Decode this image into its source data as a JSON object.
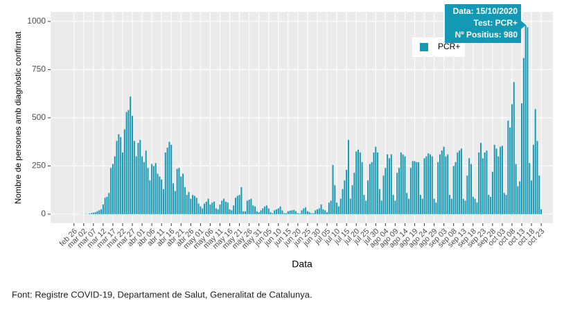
{
  "chart_data": {
    "type": "bar",
    "y_label": "Nombre de persones amb diagnòstic confirmat",
    "x_label": "Data",
    "source": "Font: Registre COVID-19, Departament de Salut, Generalitat de Catalunya.",
    "tooltip": [
      "Data: 15/10/2020",
      "Test: PCR+",
      "Nº Positius: 980"
    ],
    "grid": true,
    "legend": "top-right",
    "xlim": [
      "2020-02-14",
      "2020-10-29"
    ],
    "ylim": [
      -47,
      1050
    ],
    "yticks": [
      0,
      250,
      500,
      750,
      {
        "value": 1000,
        "label": "1000"
      }
    ],
    "xticks": [
      {
        "value": "2020-02-26",
        "label": "feb 26"
      },
      {
        "value": "2020-03-02",
        "label": "mar 02"
      },
      {
        "value": "2020-03-07",
        "label": "mar 07"
      },
      {
        "value": "2020-03-12",
        "label": "mar 12"
      },
      {
        "value": "2020-03-17",
        "label": "mar 17"
      },
      {
        "value": "2020-03-22",
        "label": "mar 22"
      },
      {
        "value": "2020-03-27",
        "label": "mar 27"
      },
      {
        "value": "2020-04-01",
        "label": "abr 01"
      },
      {
        "value": "2020-04-06",
        "label": "abr 06"
      },
      {
        "value": "2020-04-11",
        "label": "abr 11"
      },
      {
        "value": "2020-04-16",
        "label": "abr 16"
      },
      {
        "value": "2020-04-21",
        "label": "abr 21"
      },
      {
        "value": "2020-04-26",
        "label": "abr 26"
      },
      {
        "value": "2020-05-01",
        "label": "may 01"
      },
      {
        "value": "2020-05-06",
        "label": "may 06"
      },
      {
        "value": "2020-05-11",
        "label": "may 11"
      },
      {
        "value": "2020-05-16",
        "label": "may 16"
      },
      {
        "value": "2020-05-21",
        "label": "may 21"
      },
      {
        "value": "2020-05-26",
        "label": "may 26"
      },
      {
        "value": "2020-05-31",
        "label": "may 31"
      },
      {
        "value": "2020-06-05",
        "label": "jun 05"
      },
      {
        "value": "2020-06-10",
        "label": "jun 10"
      },
      {
        "value": "2020-06-15",
        "label": "jun 15"
      },
      {
        "value": "2020-06-20",
        "label": "jun 20"
      },
      {
        "value": "2020-06-25",
        "label": "jun 25"
      },
      {
        "value": "2020-06-30",
        "label": "jun 30"
      },
      {
        "value": "2020-07-05",
        "label": "jul 05"
      },
      {
        "value": "2020-07-10",
        "label": "jul 10"
      },
      {
        "value": "2020-07-15",
        "label": "jul 15"
      },
      {
        "value": "2020-07-20",
        "label": "jul 20"
      },
      {
        "value": "2020-07-25",
        "label": "jul 25"
      },
      {
        "value": "2020-07-30",
        "label": "jul 30"
      },
      {
        "value": "2020-08-04",
        "label": "ago 04"
      },
      {
        "value": "2020-08-09",
        "label": "ago 09"
      },
      {
        "value": "2020-08-14",
        "label": "ago 14"
      },
      {
        "value": "2020-08-19",
        "label": "ago 19"
      },
      {
        "value": "2020-08-24",
        "label": "ago 24"
      },
      {
        "value": "2020-08-29",
        "label": "ago 29"
      },
      {
        "value": "2020-09-03",
        "label": "sep 03"
      },
      {
        "value": "2020-09-08",
        "label": "sep 08"
      },
      {
        "value": "2020-09-13",
        "label": "sep 13"
      },
      {
        "value": "2020-09-18",
        "label": "sep 18"
      },
      {
        "value": "2020-09-23",
        "label": "sep 23"
      },
      {
        "value": "2020-09-28",
        "label": "sep 28"
      },
      {
        "value": "2020-10-03",
        "label": "oct 03"
      },
      {
        "value": "2020-10-08",
        "label": "oct 08"
      },
      {
        "value": "2020-10-13",
        "label": "oct 13"
      },
      {
        "value": "2020-10-18",
        "label": "oct 18"
      },
      {
        "value": "2020-10-23",
        "label": "oct 23"
      }
    ],
    "x": [
      "2020-03-01",
      "2020-03-02",
      "2020-03-03",
      "2020-03-04",
      "2020-03-05",
      "2020-03-06",
      "2020-03-07",
      "2020-03-08",
      "2020-03-09",
      "2020-03-10",
      "2020-03-11",
      "2020-03-12",
      "2020-03-13",
      "2020-03-14",
      "2020-03-15",
      "2020-03-16",
      "2020-03-17",
      "2020-03-18",
      "2020-03-19",
      "2020-03-20",
      "2020-03-21",
      "2020-03-22",
      "2020-03-23",
      "2020-03-24",
      "2020-03-25",
      "2020-03-26",
      "2020-03-27",
      "2020-03-28",
      "2020-03-29",
      "2020-03-30",
      "2020-03-31",
      "2020-04-01",
      "2020-04-02",
      "2020-04-03",
      "2020-04-04",
      "2020-04-05",
      "2020-04-06",
      "2020-04-07",
      "2020-04-08",
      "2020-04-09",
      "2020-04-10",
      "2020-04-11",
      "2020-04-12",
      "2020-04-13",
      "2020-04-14",
      "2020-04-15",
      "2020-04-16",
      "2020-04-17",
      "2020-04-18",
      "2020-04-19",
      "2020-04-20",
      "2020-04-21",
      "2020-04-22",
      "2020-04-23",
      "2020-04-24",
      "2020-04-25",
      "2020-04-26",
      "2020-04-27",
      "2020-04-28",
      "2020-04-29",
      "2020-04-30",
      "2020-05-01",
      "2020-05-02",
      "2020-05-03",
      "2020-05-04",
      "2020-05-05",
      "2020-05-06",
      "2020-05-07",
      "2020-05-08",
      "2020-05-09",
      "2020-05-10",
      "2020-05-11",
      "2020-05-12",
      "2020-05-13",
      "2020-05-14",
      "2020-05-15",
      "2020-05-16",
      "2020-05-17",
      "2020-05-18",
      "2020-05-19",
      "2020-05-20",
      "2020-05-21",
      "2020-05-22",
      "2020-05-23",
      "2020-05-24",
      "2020-05-25",
      "2020-05-26",
      "2020-05-27",
      "2020-05-28",
      "2020-05-29",
      "2020-05-30",
      "2020-05-31",
      "2020-06-01",
      "2020-06-02",
      "2020-06-03",
      "2020-06-04",
      "2020-06-05",
      "2020-06-06",
      "2020-06-07",
      "2020-06-08",
      "2020-06-09",
      "2020-06-10",
      "2020-06-11",
      "2020-06-12",
      "2020-06-13",
      "2020-06-14",
      "2020-06-15",
      "2020-06-16",
      "2020-06-17",
      "2020-06-18",
      "2020-06-19",
      "2020-06-20",
      "2020-06-21",
      "2020-06-22",
      "2020-06-23",
      "2020-06-24",
      "2020-06-25",
      "2020-06-26",
      "2020-06-27",
      "2020-06-28",
      "2020-06-29",
      "2020-06-30",
      "2020-07-01",
      "2020-07-02",
      "2020-07-03",
      "2020-07-04",
      "2020-07-05",
      "2020-07-06",
      "2020-07-07",
      "2020-07-08",
      "2020-07-09",
      "2020-07-10",
      "2020-07-11",
      "2020-07-12",
      "2020-07-13",
      "2020-07-14",
      "2020-07-15",
      "2020-07-16",
      "2020-07-17",
      "2020-07-18",
      "2020-07-19",
      "2020-07-20",
      "2020-07-21",
      "2020-07-22",
      "2020-07-23",
      "2020-07-24",
      "2020-07-25",
      "2020-07-26",
      "2020-07-27",
      "2020-07-28",
      "2020-07-29",
      "2020-07-30",
      "2020-07-31",
      "2020-08-01",
      "2020-08-02",
      "2020-08-03",
      "2020-08-04",
      "2020-08-05",
      "2020-08-06",
      "2020-08-07",
      "2020-08-08",
      "2020-08-09",
      "2020-08-10",
      "2020-08-11",
      "2020-08-12",
      "2020-08-13",
      "2020-08-14",
      "2020-08-15",
      "2020-08-16",
      "2020-08-17",
      "2020-08-18",
      "2020-08-19",
      "2020-08-20",
      "2020-08-21",
      "2020-08-22",
      "2020-08-23",
      "2020-08-24",
      "2020-08-25",
      "2020-08-26",
      "2020-08-27",
      "2020-08-28",
      "2020-08-29",
      "2020-08-30",
      "2020-08-31",
      "2020-09-01",
      "2020-09-02",
      "2020-09-03",
      "2020-09-04",
      "2020-09-05",
      "2020-09-06",
      "2020-09-07",
      "2020-09-08",
      "2020-09-09",
      "2020-09-10",
      "2020-09-11",
      "2020-09-12",
      "2020-09-13",
      "2020-09-14",
      "2020-09-15",
      "2020-09-16",
      "2020-09-17",
      "2020-09-18",
      "2020-09-19",
      "2020-09-20",
      "2020-09-21",
      "2020-09-22",
      "2020-09-23",
      "2020-09-24",
      "2020-09-25",
      "2020-09-26",
      "2020-09-27",
      "2020-09-28",
      "2020-09-29",
      "2020-09-30",
      "2020-10-01",
      "2020-10-02",
      "2020-10-03",
      "2020-10-04",
      "2020-10-05",
      "2020-10-06",
      "2020-10-07",
      "2020-10-08",
      "2020-10-09",
      "2020-10-10",
      "2020-10-11",
      "2020-10-12",
      "2020-10-13",
      "2020-10-14",
      "2020-10-15",
      "2020-10-16",
      "2020-10-17",
      "2020-10-18",
      "2020-10-19",
      "2020-10-20",
      "2020-10-21",
      "2020-10-22",
      "2020-10-23"
    ],
    "series": [
      {
        "name": "PCR+",
        "color": "#1499b4",
        "values": [
          1,
          0,
          2,
          1,
          3,
          5,
          8,
          10,
          15,
          20,
          25,
          50,
          85,
          90,
          110,
          240,
          260,
          300,
          380,
          415,
          400,
          320,
          440,
          530,
          540,
          610,
          510,
          380,
          300,
          370,
          385,
          300,
          270,
          330,
          240,
          175,
          260,
          250,
          265,
          210,
          195,
          180,
          130,
          320,
          345,
          375,
          360,
          160,
          120,
          235,
          240,
          195,
          210,
          140,
          100,
          115,
          80,
          100,
          95,
          85,
          55,
          40,
          30,
          55,
          65,
          80,
          50,
          60,
          65,
          30,
          25,
          50,
          70,
          80,
          65,
          60,
          25,
          20,
          45,
          85,
          95,
          100,
          140,
          15,
          15,
          70,
          75,
          80,
          45,
          40,
          15,
          10,
          20,
          30,
          40,
          45,
          30,
          10,
          5,
          20,
          25,
          30,
          40,
          20,
          5,
          5,
          15,
          18,
          20,
          22,
          15,
          5,
          3,
          20,
          30,
          35,
          15,
          10,
          5,
          5,
          20,
          25,
          30,
          50,
          25,
          20,
          10,
          60,
          70,
          255,
          150,
          60,
          40,
          80,
          130,
          175,
          230,
          385,
          80,
          150,
          215,
          325,
          335,
          320,
          270,
          100,
          70,
          175,
          260,
          270,
          320,
          350,
          320,
          130,
          70,
          200,
          240,
          310,
          290,
          310,
          100,
          70,
          215,
          240,
          320,
          310,
          300,
          110,
          80,
          240,
          275,
          275,
          270,
          270,
          100,
          80,
          290,
          300,
          315,
          310,
          300,
          80,
          60,
          270,
          310,
          330,
          350,
          300,
          310,
          100,
          80,
          250,
          270,
          320,
          330,
          340,
          80,
          70,
          200,
          290,
          260,
          90,
          80,
          60,
          320,
          370,
          290,
          320,
          330,
          100,
          90,
          220,
          360,
          340,
          300,
          350,
          355,
          110,
          100,
          485,
          450,
          570,
          685,
          260,
          145,
          170,
          575,
          810,
          980,
          970,
          265,
          175,
          360,
          545,
          380,
          200,
          25
        ]
      }
    ]
  }
}
